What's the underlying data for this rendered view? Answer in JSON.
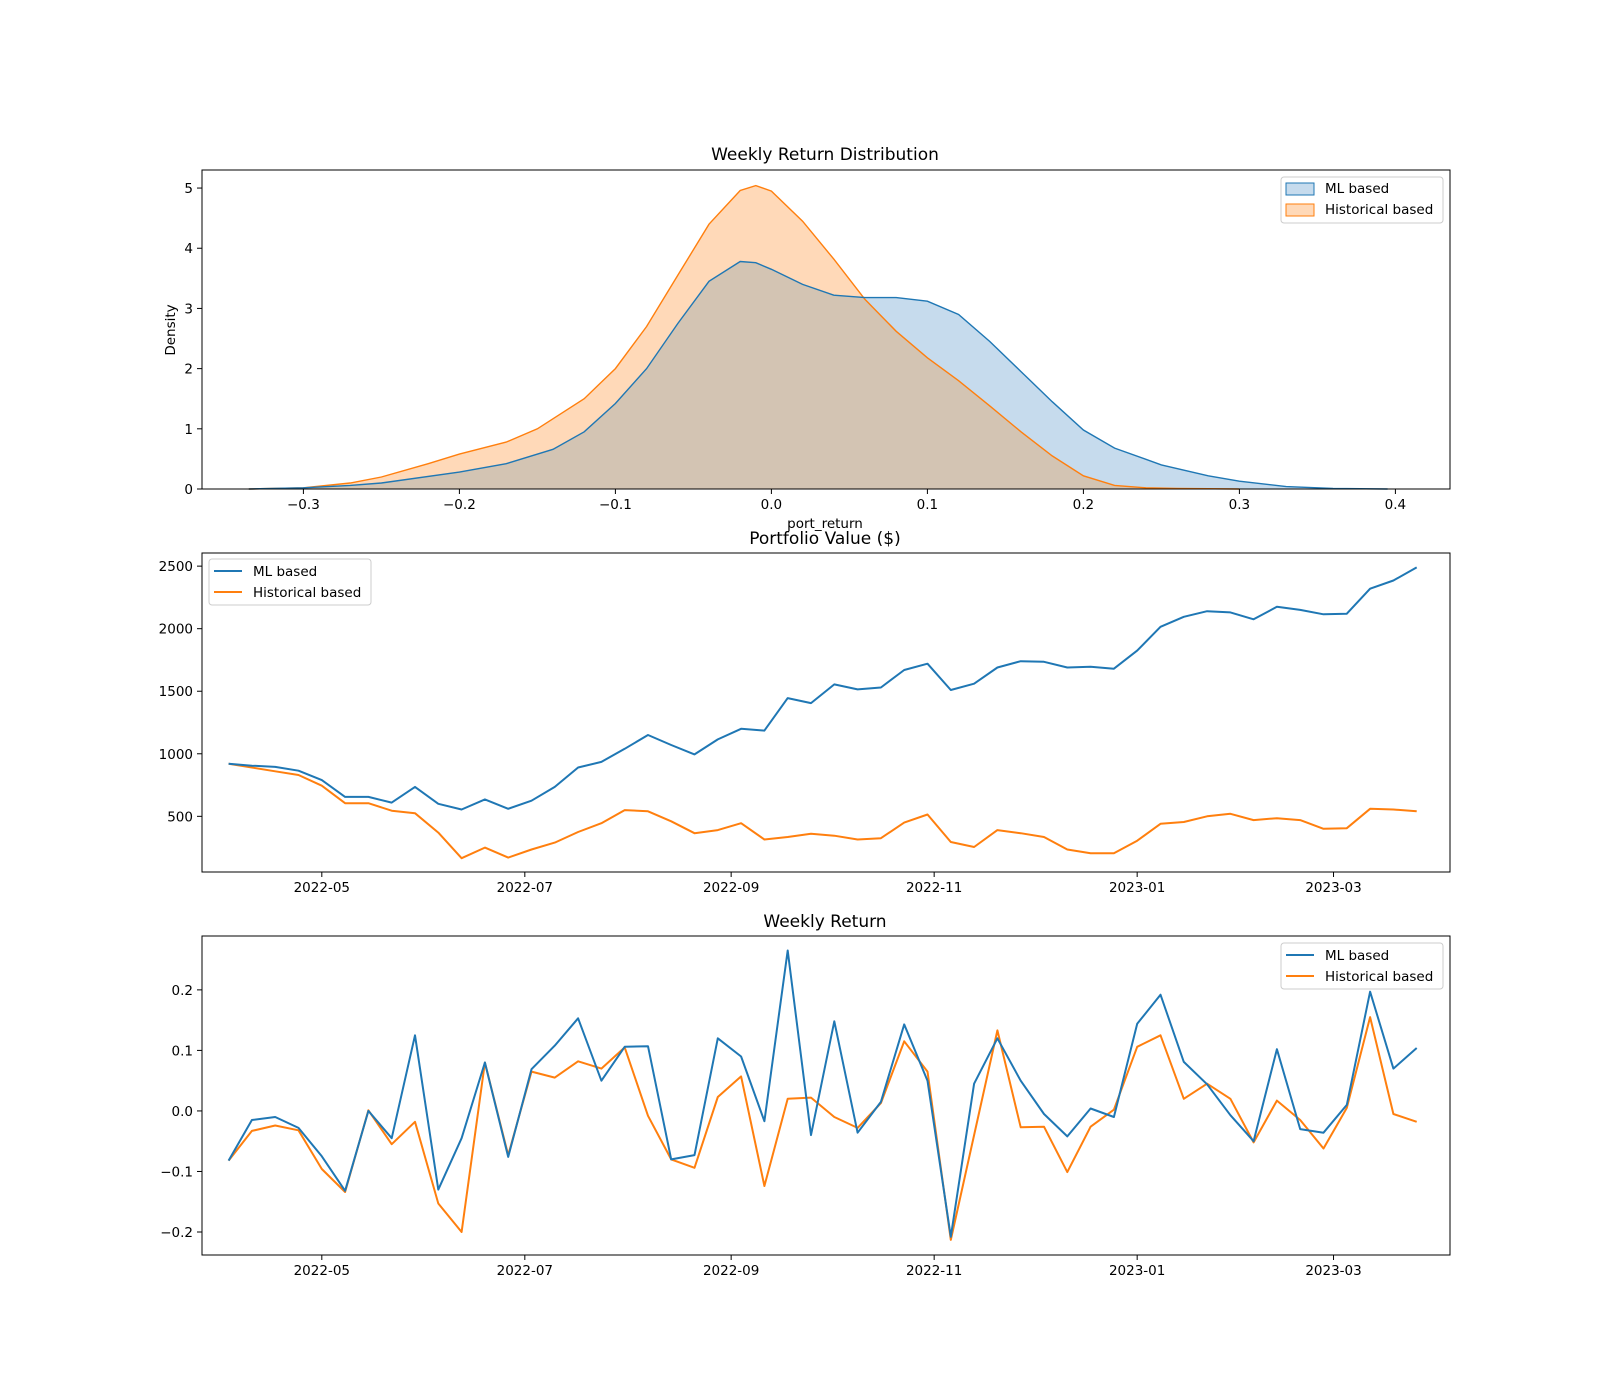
{
  "colors": {
    "ml": "#1f77b4",
    "hist": "#ff7f0e",
    "ml_fill": "#c6dbed",
    "hist_fill": "#ffd9b8",
    "overlap_fill": "#d3c4b3"
  },
  "chart_data": [
    {
      "type": "area",
      "title": "Weekly Return Distribution",
      "xlabel": "port_return",
      "ylabel": "Density",
      "xlim": [
        -0.365,
        0.435
      ],
      "ylim": [
        0,
        5.3
      ],
      "xticks": [
        -0.3,
        -0.2,
        -0.1,
        0.0,
        0.1,
        0.2,
        0.3,
        0.4
      ],
      "xtick_labels": [
        "−0.3",
        "−0.2",
        "−0.1",
        "0.0",
        "0.1",
        "0.2",
        "0.3",
        "0.4"
      ],
      "yticks": [
        0,
        1,
        2,
        3,
        4,
        5
      ],
      "ytick_labels": [
        "0",
        "1",
        "2",
        "3",
        "4",
        "5"
      ],
      "legend_position": "top-right",
      "grid": false,
      "series": [
        {
          "name": "ML based",
          "x": [
            -0.335,
            -0.3,
            -0.27,
            -0.25,
            -0.2,
            -0.17,
            -0.14,
            -0.12,
            -0.1,
            -0.08,
            -0.06,
            -0.04,
            -0.02,
            -0.01,
            0.0,
            0.02,
            0.04,
            0.06,
            0.08,
            0.1,
            0.12,
            0.14,
            0.16,
            0.18,
            0.2,
            0.22,
            0.25,
            0.28,
            0.3,
            0.33,
            0.36,
            0.395
          ],
          "y": [
            0.0,
            0.02,
            0.06,
            0.1,
            0.28,
            0.42,
            0.66,
            0.95,
            1.42,
            2.0,
            2.75,
            3.45,
            3.78,
            3.76,
            3.65,
            3.4,
            3.22,
            3.18,
            3.18,
            3.12,
            2.9,
            2.45,
            1.95,
            1.45,
            0.98,
            0.68,
            0.4,
            0.22,
            0.13,
            0.04,
            0.01,
            0.0
          ]
        },
        {
          "name": "Historical based",
          "x": [
            -0.335,
            -0.3,
            -0.27,
            -0.25,
            -0.22,
            -0.2,
            -0.17,
            -0.15,
            -0.12,
            -0.1,
            -0.08,
            -0.06,
            -0.04,
            -0.02,
            -0.01,
            0.0,
            0.02,
            0.04,
            0.06,
            0.08,
            0.1,
            0.12,
            0.14,
            0.16,
            0.18,
            0.2,
            0.22,
            0.24,
            0.26,
            0.3
          ],
          "y": [
            0.0,
            0.02,
            0.1,
            0.2,
            0.42,
            0.58,
            0.78,
            1.0,
            1.5,
            2.0,
            2.7,
            3.55,
            4.4,
            4.96,
            5.04,
            4.95,
            4.45,
            3.82,
            3.15,
            2.62,
            2.18,
            1.8,
            1.38,
            0.95,
            0.55,
            0.22,
            0.06,
            0.02,
            0.01,
            0.0
          ]
        }
      ]
    },
    {
      "type": "line",
      "title": "Portfolio Value ($)",
      "xlabel": "",
      "ylabel": "",
      "x_start": "2022-04-03",
      "x_step_days": 7,
      "xlim": [
        "2022-03-26",
        "2023-04-05"
      ],
      "ylim": [
        55,
        2605
      ],
      "xticks": [
        "2022-05-01",
        "2022-07-01",
        "2022-09-01",
        "2022-11-01",
        "2023-01-01",
        "2023-03-01"
      ],
      "xtick_labels": [
        "2022-05",
        "2022-07",
        "2022-09",
        "2022-11",
        "2023-01",
        "2023-03"
      ],
      "yticks": [
        500,
        1000,
        1500,
        2000,
        2500
      ],
      "ytick_labels": [
        "500",
        "1000",
        "1500",
        "2000",
        "2500"
      ],
      "legend_position": "top-left",
      "grid": false,
      "series": [
        {
          "name": "ML based",
          "values": [
            920,
            905,
            895,
            865,
            790,
            655,
            655,
            610,
            735,
            600,
            555,
            635,
            560,
            625,
            735,
            890,
            935,
            1040,
            1150,
            1070,
            995,
            1115,
            1200,
            1185,
            1445,
            1405,
            1555,
            1515,
            1530,
            1670,
            1720,
            1510,
            1560,
            1690,
            1740,
            1735,
            1690,
            1695,
            1680,
            1825,
            2015,
            2095,
            2140,
            2130,
            2075,
            2175,
            2150,
            2115,
            2120,
            2320,
            2385,
            2490
          ]
        },
        {
          "name": "Historical based",
          "values": [
            920,
            890,
            860,
            830,
            745,
            605,
            605,
            545,
            525,
            370,
            165,
            250,
            170,
            235,
            290,
            375,
            445,
            550,
            540,
            460,
            365,
            390,
            445,
            315,
            335,
            360,
            345,
            315,
            325,
            450,
            515,
            295,
            255,
            390,
            365,
            335,
            235,
            205,
            205,
            305,
            440,
            455,
            500,
            520,
            470,
            485,
            470,
            400,
            405,
            560,
            555,
            540
          ]
        }
      ]
    },
    {
      "type": "line",
      "title": "Weekly Return",
      "xlabel": "",
      "ylabel": "",
      "x_start": "2022-04-03",
      "x_step_days": 7,
      "xlim": [
        "2022-03-26",
        "2023-04-05"
      ],
      "ylim": [
        -0.238,
        0.289
      ],
      "xticks": [
        "2022-05-01",
        "2022-07-01",
        "2022-09-01",
        "2022-11-01",
        "2023-01-01",
        "2023-03-01"
      ],
      "xtick_labels": [
        "2022-05",
        "2022-07",
        "2022-09",
        "2022-11",
        "2023-01",
        "2023-03"
      ],
      "yticks": [
        -0.2,
        -0.1,
        0.0,
        0.1,
        0.2
      ],
      "ytick_labels": [
        "−0.2",
        "−0.1",
        "0.0",
        "0.1",
        "0.2"
      ],
      "legend_position": "top-right",
      "grid": false,
      "series": [
        {
          "name": "ML based",
          "values": [
            -0.082,
            -0.015,
            -0.01,
            -0.028,
            -0.075,
            -0.132,
            0.0,
            -0.045,
            0.125,
            -0.13,
            -0.045,
            0.08,
            -0.076,
            0.069,
            0.108,
            0.153,
            0.05,
            0.106,
            0.107,
            -0.08,
            -0.073,
            0.12,
            0.09,
            -0.017,
            0.265,
            -0.04,
            0.148,
            -0.036,
            0.015,
            0.143,
            0.05,
            -0.208,
            0.045,
            0.12,
            0.05,
            -0.005,
            -0.042,
            0.004,
            -0.01,
            0.144,
            0.192,
            0.081,
            0.044,
            -0.007,
            -0.05,
            0.102,
            -0.03,
            -0.036,
            0.01,
            0.197,
            0.07,
            0.104
          ]
        },
        {
          "name": "Historical based",
          "values": [
            -0.082,
            -0.033,
            -0.024,
            -0.032,
            -0.096,
            -0.134,
            0.001,
            -0.055,
            -0.018,
            -0.153,
            -0.2,
            0.08,
            -0.073,
            0.065,
            0.055,
            0.082,
            0.07,
            0.105,
            -0.008,
            -0.08,
            -0.094,
            0.023,
            0.057,
            -0.124,
            0.02,
            0.022,
            -0.01,
            -0.028,
            0.013,
            0.115,
            0.065,
            -0.213,
            -0.04,
            0.133,
            -0.027,
            -0.026,
            -0.101,
            -0.026,
            0.002,
            0.106,
            0.125,
            0.02,
            0.045,
            0.02,
            -0.052,
            0.017,
            -0.015,
            -0.062,
            0.005,
            0.155,
            -0.005,
            -0.018
          ]
        }
      ]
    }
  ]
}
